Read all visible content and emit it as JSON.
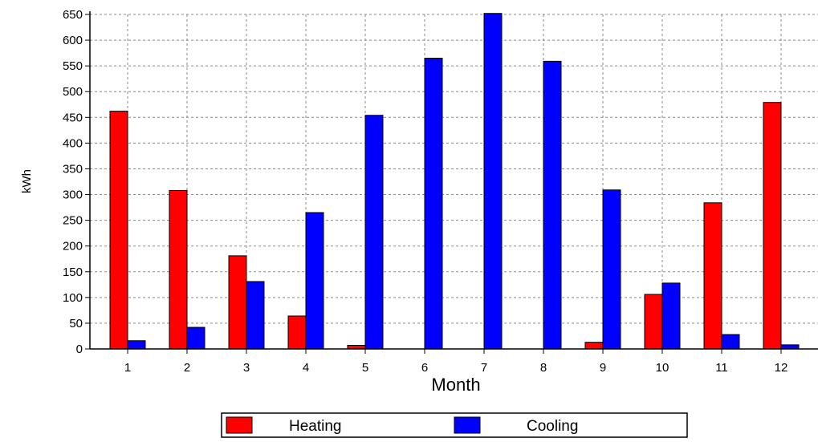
{
  "chart_data": {
    "type": "bar",
    "title": "",
    "xlabel": "Month",
    "ylabel": "kWh",
    "categories": [
      "1",
      "2",
      "3",
      "4",
      "5",
      "6",
      "7",
      "8",
      "9",
      "10",
      "11",
      "12"
    ],
    "series": [
      {
        "name": "Heating",
        "color": "#ff0000",
        "values": [
          462,
          308,
          181,
          64,
          7,
          0,
          0,
          0,
          13,
          106,
          284,
          479
        ]
      },
      {
        "name": "Cooling",
        "color": "#0000ff",
        "values": [
          16,
          42,
          131,
          265,
          454,
          565,
          652,
          559,
          309,
          128,
          28,
          8
        ]
      }
    ],
    "ylim": [
      0,
      650
    ],
    "yticks": [
      0,
      50,
      100,
      150,
      200,
      250,
      300,
      350,
      400,
      450,
      500,
      550,
      600,
      650
    ],
    "grid": true,
    "legend_position": "bottom"
  }
}
